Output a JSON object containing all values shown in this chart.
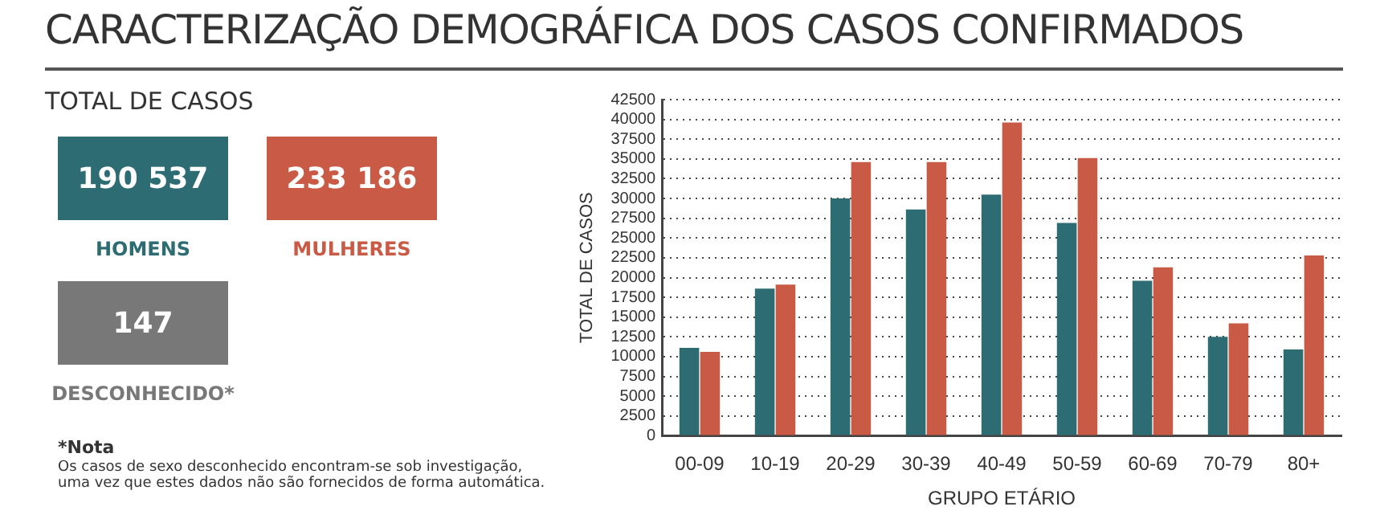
{
  "chart_data": [
    {
      "type": "other",
      "title": "CARACTERIZAÇÃO DEMOGRÁFICA DOS CASOS CONFIRMADOS",
      "subtitle": "TOTAL DE CASOS",
      "categories": [
        "HOMENS",
        "MULHERES",
        "DESCONHECIDO*"
      ],
      "value_labels": [
        "190 537",
        "233 186",
        "147"
      ],
      "colors": [
        "#2e6c74",
        "#c95b46",
        "#787878"
      ],
      "annotations": [
        "*Nota",
        "Os casos de sexo desconhecido encontram-se sob investigação, uma vez que estes dados não são fornecidos de forma automática."
      ]
    },
    {
      "type": "bar",
      "xlabel": "GRUPO ETÁRIO",
      "ylabel": "TOTAL DE CASOS",
      "categories": [
        "00-09",
        "10-19",
        "20-29",
        "30-39",
        "40-49",
        "50-59",
        "60-69",
        "70-79",
        "80+"
      ],
      "series": [
        {
          "color": "#2e6c74",
          "values": [
            11100,
            18600,
            30000,
            28600,
            30500,
            26900,
            19600,
            12500,
            10900
          ]
        },
        {
          "color": "#c95b46",
          "values": [
            10600,
            19100,
            34600,
            34600,
            39600,
            35100,
            21300,
            14200,
            22800
          ]
        }
      ],
      "ylim": [
        0,
        42500
      ],
      "yticks": [
        0,
        2500,
        5000,
        7500,
        10000,
        12500,
        15000,
        17500,
        20000,
        22500,
        25000,
        27500,
        30000,
        32500,
        35000,
        37500,
        40000,
        42500
      ],
      "grid": "y"
    }
  ]
}
